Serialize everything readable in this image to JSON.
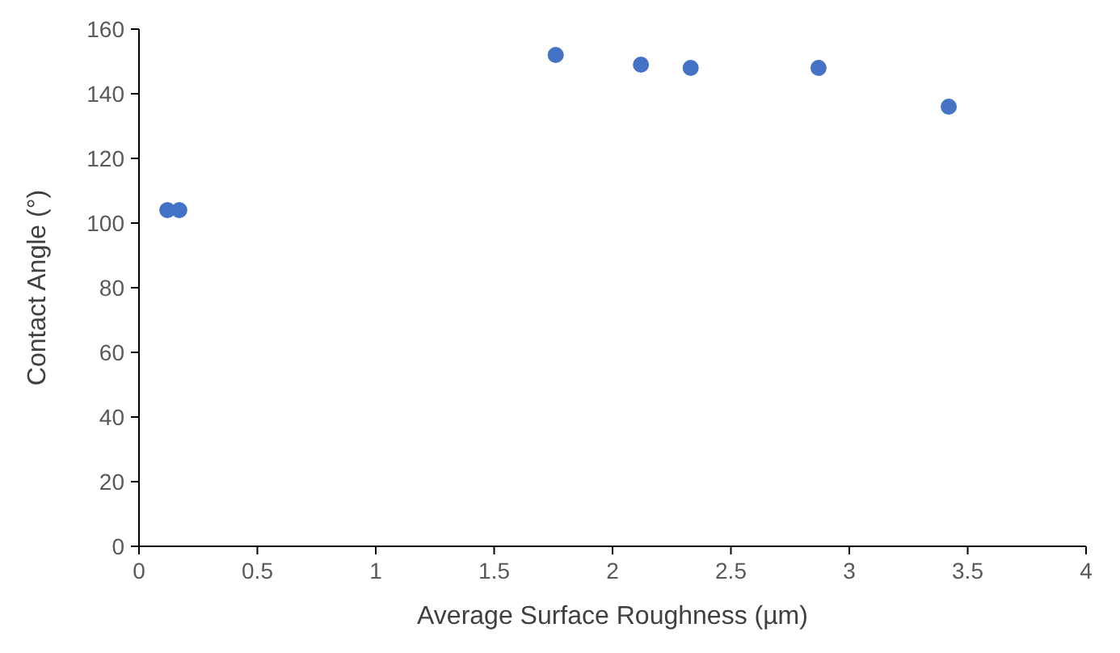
{
  "chart_data": {
    "type": "scatter",
    "xlabel": "Average Surface Roughness (µm)",
    "ylabel": "Contact Angle (°)",
    "x": [
      0.12,
      0.17,
      1.76,
      2.12,
      2.33,
      2.87,
      3.42
    ],
    "series": [
      {
        "color": "#4472c4",
        "values": [
          104,
          104,
          152,
          149,
          148,
          148,
          136
        ]
      }
    ],
    "xlim": [
      0,
      4
    ],
    "xticks": [
      0,
      0.5,
      1,
      1.5,
      2,
      2.5,
      3,
      3.5,
      4
    ],
    "ylim": [
      0,
      160
    ],
    "yticks": [
      0,
      20,
      40,
      60,
      80,
      100,
      120,
      140,
      160
    ],
    "grid": false,
    "marker": "circle"
  }
}
